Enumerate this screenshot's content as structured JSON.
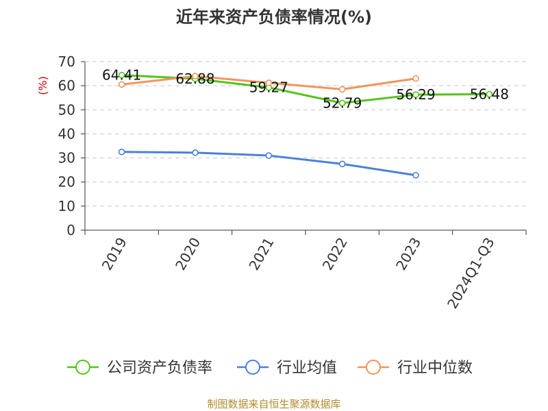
{
  "chart_data": {
    "type": "line",
    "title": "近年来资产负债率情况(%)",
    "y_unit": "(%)",
    "ylim": [
      0,
      70
    ],
    "y_ticks": [
      0,
      10,
      20,
      30,
      40,
      50,
      60,
      70
    ],
    "categories": [
      "2019",
      "2020",
      "2021",
      "2022",
      "2023",
      "2024Q1-Q3"
    ],
    "grid": true,
    "legend_position": "bottom",
    "series": [
      {
        "name": "公司资产负债率",
        "color": "#52c41a",
        "values": [
          64.41,
          62.88,
          59.27,
          52.79,
          56.29,
          56.48
        ],
        "labels": [
          "64.41",
          "62.88",
          "59.27",
          "52.79",
          "56.29",
          "56.48"
        ]
      },
      {
        "name": "行业均值",
        "color": "#4a7fdc",
        "values": [
          32.5,
          32.2,
          31.0,
          27.5,
          22.8,
          null
        ]
      },
      {
        "name": "行业中位数",
        "color": "#f4935a",
        "values": [
          60.5,
          64.0,
          61.2,
          58.5,
          63.0,
          null
        ]
      }
    ],
    "source": "制图数据来自恒生聚源数据库"
  }
}
